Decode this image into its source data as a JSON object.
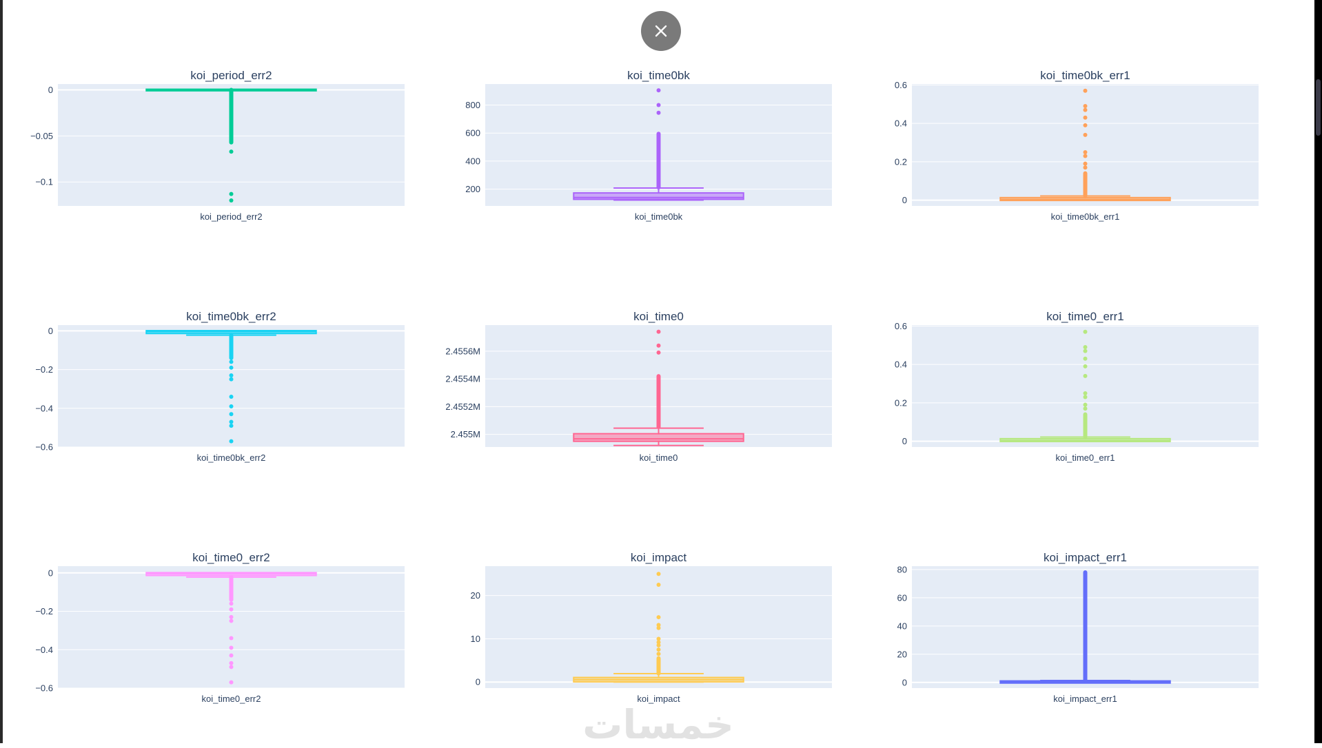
{
  "close_button": {
    "icon": "close-icon"
  },
  "watermark": "خمسات",
  "style": {
    "plot_bg": "#e5ecf6",
    "grid": "#ffffff",
    "text": "#2a3f5f"
  },
  "chart_data": [
    {
      "type": "box",
      "title": "koi_period_err2",
      "xlabel": "koi_period_err2",
      "color": "#00cc96",
      "ylim": [
        -0.126,
        0.0064
      ],
      "ticks": [
        {
          "v": 0,
          "label": "0"
        },
        {
          "v": -0.05,
          "label": "−0.05"
        },
        {
          "v": -0.1,
          "label": "−0.1"
        }
      ],
      "box": {
        "lowerfence": -0.0004,
        "q1": -0.0002,
        "median": -0.0001,
        "q3": 0,
        "upperfence": 0
      },
      "outlier_range": [
        -0.057,
        0
      ],
      "outliers": [
        -0.067,
        -0.113,
        -0.12
      ]
    },
    {
      "type": "box",
      "title": "koi_time0bk",
      "xlabel": "koi_time0bk",
      "color": "#ab63fa",
      "ylim": [
        80,
        950
      ],
      "ticks": [
        {
          "v": 200,
          "label": "200"
        },
        {
          "v": 400,
          "label": "400"
        },
        {
          "v": 600,
          "label": "600"
        },
        {
          "v": 800,
          "label": "800"
        }
      ],
      "box": {
        "lowerfence": 122,
        "q1": 132,
        "median": 140,
        "q3": 168,
        "upperfence": 208
      },
      "outlier_range": [
        212,
        595
      ],
      "outliers": [
        745,
        800,
        905
      ]
    },
    {
      "type": "box",
      "title": "koi_time0bk_err1",
      "xlabel": "koi_time0bk_err1",
      "color": "#ffa15a",
      "ylim": [
        -0.03,
        0.605
      ],
      "ticks": [
        {
          "v": 0,
          "label": "0"
        },
        {
          "v": 0.2,
          "label": "0.2"
        },
        {
          "v": 0.4,
          "label": "0.4"
        },
        {
          "v": 0.6,
          "label": "0.6"
        }
      ],
      "box": {
        "lowerfence": 0.0001,
        "q1": 0.002,
        "median": 0.004,
        "q3": 0.01,
        "upperfence": 0.022
      },
      "outlier_range": [
        0.022,
        0.14
      ],
      "outliers": [
        0.17,
        0.19,
        0.23,
        0.25,
        0.34,
        0.39,
        0.43,
        0.47,
        0.49,
        0.57
      ]
    },
    {
      "type": "box",
      "title": "koi_time0bk_err2",
      "xlabel": "koi_time0bk_err2",
      "color": "#19d3f3",
      "ylim": [
        -0.6,
        0.03
      ],
      "ticks": [
        {
          "v": 0,
          "label": "0"
        },
        {
          "v": -0.2,
          "label": "−0.2"
        },
        {
          "v": -0.4,
          "label": "−0.4"
        },
        {
          "v": -0.6,
          "label": "−0.6"
        }
      ],
      "box": {
        "lowerfence": -0.022,
        "q1": -0.01,
        "median": -0.004,
        "q3": -0.002,
        "upperfence": -0.0001
      },
      "outlier_range": [
        -0.14,
        -0.022
      ],
      "outliers": [
        -0.16,
        -0.19,
        -0.23,
        -0.25,
        -0.34,
        -0.39,
        -0.43,
        -0.47,
        -0.49,
        -0.57
      ]
    },
    {
      "type": "box",
      "title": "koi_time0",
      "xlabel": "koi_time0",
      "color": "#ff6692",
      "ylim": [
        2454909,
        2455788
      ],
      "ticks": [
        {
          "v": 2455000,
          "label": "2.455M"
        },
        {
          "v": 2455200,
          "label": "2.4552M"
        },
        {
          "v": 2455400,
          "label": "2.4554M"
        },
        {
          "v": 2455600,
          "label": "2.4556M"
        }
      ],
      "box": {
        "lowerfence": 2454920,
        "q1": 2454955,
        "median": 2454968,
        "q3": 2455000,
        "upperfence": 2455045
      },
      "outlier_range": [
        2455055,
        2455420
      ],
      "outliers": [
        2455590,
        2455640,
        2455740
      ]
    },
    {
      "type": "box",
      "title": "koi_time0_err1",
      "xlabel": "koi_time0_err1",
      "color": "#b6e880",
      "ylim": [
        -0.03,
        0.605
      ],
      "ticks": [
        {
          "v": 0,
          "label": "0"
        },
        {
          "v": 0.2,
          "label": "0.2"
        },
        {
          "v": 0.4,
          "label": "0.4"
        },
        {
          "v": 0.6,
          "label": "0.6"
        }
      ],
      "box": {
        "lowerfence": 0.0001,
        "q1": 0.002,
        "median": 0.004,
        "q3": 0.01,
        "upperfence": 0.022
      },
      "outlier_range": [
        0.022,
        0.14
      ],
      "outliers": [
        0.17,
        0.19,
        0.23,
        0.25,
        0.34,
        0.39,
        0.43,
        0.47,
        0.49,
        0.57
      ]
    },
    {
      "type": "box",
      "title": "koi_time0_err2",
      "xlabel": "koi_time0_err2",
      "color": "#ff97ff",
      "ylim": [
        -0.6,
        0.035
      ],
      "ticks": [
        {
          "v": 0,
          "label": "0"
        },
        {
          "v": -0.2,
          "label": "−0.2"
        },
        {
          "v": -0.4,
          "label": "−0.4"
        },
        {
          "v": -0.6,
          "label": "−0.6"
        }
      ],
      "box": {
        "lowerfence": -0.022,
        "q1": -0.01,
        "median": -0.004,
        "q3": -0.002,
        "upperfence": -0.0001
      },
      "outlier_range": [
        -0.14,
        -0.022
      ],
      "outliers": [
        -0.16,
        -0.19,
        -0.23,
        -0.25,
        -0.34,
        -0.39,
        -0.43,
        -0.47,
        -0.49,
        -0.57
      ]
    },
    {
      "type": "box",
      "title": "koi_impact",
      "xlabel": "koi_impact",
      "color": "#fecb52",
      "ylim": [
        -1.4,
        26.8
      ],
      "ticks": [
        {
          "v": 0,
          "label": "0"
        },
        {
          "v": 10,
          "label": "10"
        },
        {
          "v": 20,
          "label": "20"
        }
      ],
      "box": {
        "lowerfence": 0,
        "q1": 0.2,
        "median": 0.54,
        "q3": 0.9,
        "upperfence": 1.95
      },
      "outlier_range": [
        2,
        5.5
      ],
      "outliers": [
        6.5,
        7.5,
        8.5,
        9.2,
        10,
        12.5,
        13.2,
        15,
        22.5,
        25
      ]
    },
    {
      "type": "box",
      "title": "koi_impact_err1",
      "xlabel": "koi_impact_err1",
      "color": "#636efa",
      "ylim": [
        -4,
        82.4
      ],
      "ticks": [
        {
          "v": 0,
          "label": "0"
        },
        {
          "v": 20,
          "label": "20"
        },
        {
          "v": 40,
          "label": "40"
        },
        {
          "v": 60,
          "label": "60"
        },
        {
          "v": 80,
          "label": "80"
        }
      ],
      "box": {
        "lowerfence": 0,
        "q1": 0.03,
        "median": 0.2,
        "q3": 0.6,
        "upperfence": 1.4
      },
      "outlier_range": [
        1.4,
        78
      ],
      "outliers": []
    }
  ]
}
